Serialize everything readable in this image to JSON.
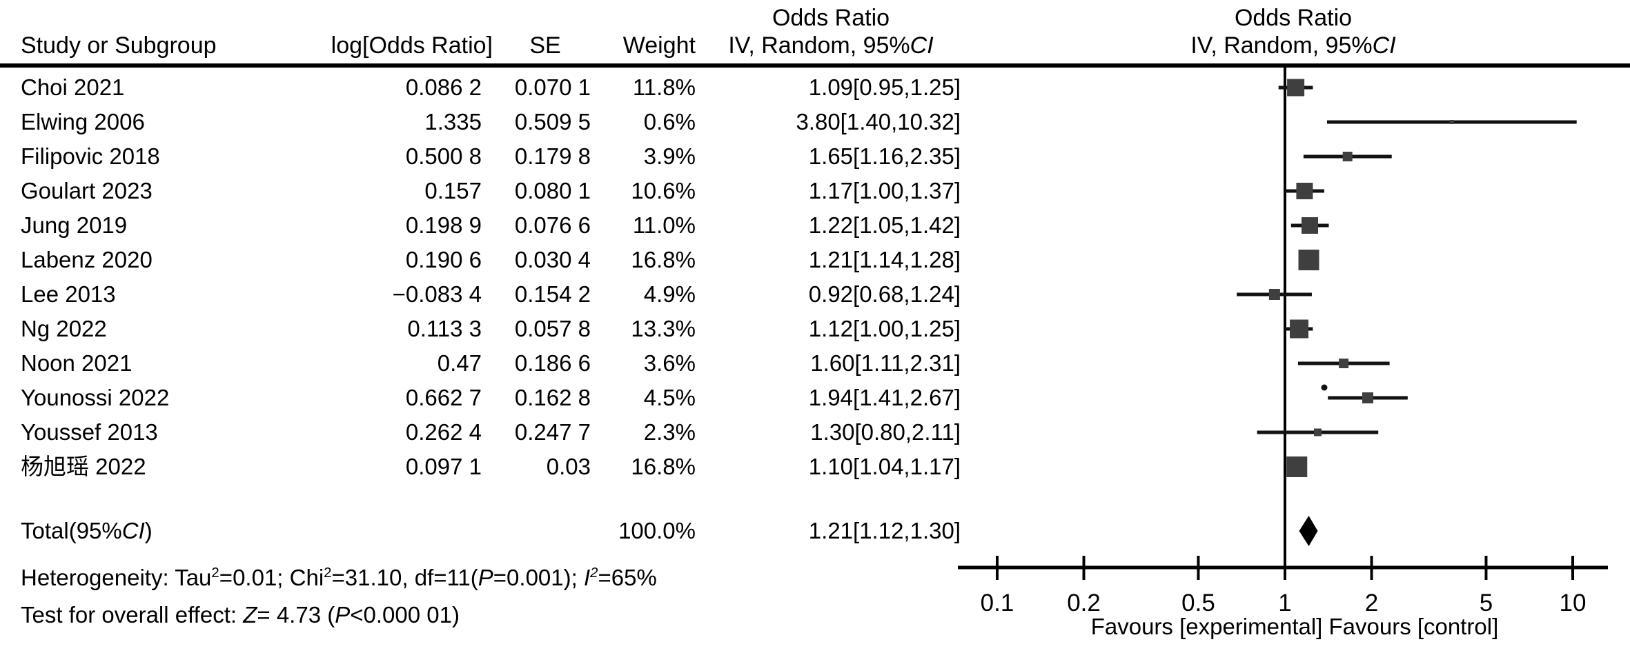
{
  "chart_data": {
    "type": "forest",
    "effect_label": "Odds Ratio",
    "columns": {
      "study": "Study or Subgroup",
      "log_or": "log[Odds Ratio]",
      "se": "SE",
      "weight": "Weight"
    },
    "or_ci_header_segments": [
      {
        "t": "IV, Random, 95%"
      },
      {
        "t": "CI",
        "i": true
      }
    ],
    "studies": [
      {
        "name": "Choi 2021",
        "log_or": "0.086 2",
        "se": "0.070 1",
        "weight_text": "11.8%",
        "weight": 11.8,
        "or_text": "1.09[0.95,1.25]",
        "or": 1.09,
        "ci_low": 0.95,
        "ci_high": 1.25
      },
      {
        "name": "Elwing 2006",
        "log_or": "1.335",
        "se": "0.509 5",
        "weight_text": "0.6%",
        "weight": 0.6,
        "or_text": "3.80[1.40,10.32]",
        "or": 3.8,
        "ci_low": 1.4,
        "ci_high": 10.32
      },
      {
        "name": "Filipovic 2018",
        "log_or": "0.500 8",
        "se": "0.179 8",
        "weight_text": "3.9%",
        "weight": 3.9,
        "or_text": "1.65[1.16,2.35]",
        "or": 1.65,
        "ci_low": 1.16,
        "ci_high": 2.35
      },
      {
        "name": "Goulart 2023",
        "log_or": "0.157",
        "se": "0.080 1",
        "weight_text": "10.6%",
        "weight": 10.6,
        "or_text": "1.17[1.00,1.37]",
        "or": 1.17,
        "ci_low": 1.0,
        "ci_high": 1.37
      },
      {
        "name": "Jung 2019",
        "log_or": "0.198 9",
        "se": "0.076 6",
        "weight_text": "11.0%",
        "weight": 11.0,
        "or_text": "1.22[1.05,1.42]",
        "or": 1.22,
        "ci_low": 1.05,
        "ci_high": 1.42
      },
      {
        "name": "Labenz 2020",
        "log_or": "0.190 6",
        "se": "0.030 4",
        "weight_text": "16.8%",
        "weight": 16.8,
        "or_text": "1.21[1.14,1.28]",
        "or": 1.21,
        "ci_low": 1.14,
        "ci_high": 1.28
      },
      {
        "name": "Lee 2013",
        "log_or": "−0.083 4",
        "se": "0.154 2",
        "weight_text": "4.9%",
        "weight": 4.9,
        "or_text": "0.92[0.68,1.24]",
        "or": 0.92,
        "ci_low": 0.68,
        "ci_high": 1.24
      },
      {
        "name": "Ng 2022",
        "log_or": "0.113 3",
        "se": "0.057 8",
        "weight_text": "13.3%",
        "weight": 13.3,
        "or_text": "1.12[1.00,1.25]",
        "or": 1.12,
        "ci_low": 1.0,
        "ci_high": 1.25
      },
      {
        "name": "Noon 2021",
        "log_or": "0.47",
        "se": "0.186 6",
        "weight_text": "3.6%",
        "weight": 3.6,
        "or_text": "1.60[1.11,2.31]",
        "or": 1.6,
        "ci_low": 1.11,
        "ci_high": 2.31
      },
      {
        "name": "Younossi 2022",
        "log_or": "0.662 7",
        "se": "0.162 8",
        "weight_text": "4.5%",
        "weight": 4.5,
        "or_text": "1.94[1.41,2.67]",
        "or": 1.94,
        "ci_low": 1.41,
        "ci_high": 2.67
      },
      {
        "name": "Youssef 2013",
        "log_or": "0.262 4",
        "se": "0.247 7",
        "weight_text": "2.3%",
        "weight": 2.3,
        "or_text": "1.30[0.80,2.11]",
        "or": 1.3,
        "ci_low": 0.8,
        "ci_high": 2.11
      },
      {
        "name": "杨旭瑶 2022",
        "log_or": "0.097 1",
        "se": "0.03",
        "weight_text": "16.8%",
        "weight": 16.8,
        "or_text": "1.10[1.04,1.17]",
        "or": 1.1,
        "ci_low": 1.04,
        "ci_high": 1.17
      }
    ],
    "total": {
      "label_segments": [
        {
          "t": "Total(95%"
        },
        {
          "t": "CI",
          "i": true
        },
        {
          "t": ")"
        }
      ],
      "weight_text": "100.0%",
      "or_text": "1.21[1.12,1.30]",
      "or": 1.21,
      "ci_low": 1.12,
      "ci_high": 1.3
    },
    "heterogeneity_segments": [
      {
        "t": "Heterogeneity: Tau"
      },
      {
        "t": "2",
        "sup": true
      },
      {
        "t": "=0.01; Chi"
      },
      {
        "t": "2",
        "sup": true
      },
      {
        "t": "=31.10, df=11("
      },
      {
        "t": "P",
        "i": true
      },
      {
        "t": "=0.001); "
      },
      {
        "t": "I",
        "i": true
      },
      {
        "t": "2",
        "sup": true,
        "i": true
      },
      {
        "t": "=65%"
      }
    ],
    "overall_effect_segments": [
      {
        "t": "Test for overall effect: "
      },
      {
        "t": "Z",
        "i": true
      },
      {
        "t": "= 4.73 ("
      },
      {
        "t": "P",
        "i": true
      },
      {
        "t": "<0.000 01)"
      }
    ],
    "axis": {
      "scale": "log",
      "ticks": [
        0.1,
        0.2,
        0.5,
        1,
        2,
        5,
        10
      ],
      "tick_labels": [
        "0.1",
        "0.2",
        "0.5",
        "1",
        "2",
        "5",
        "10"
      ],
      "favours_left": "Favours [experimental]",
      "favours_right": "Favours [control]"
    },
    "colors": {
      "square": "#3f3f3f",
      "ci_line": "#121212",
      "diamond": "#000000",
      "axis": "#000000",
      "text": "#000000"
    }
  }
}
